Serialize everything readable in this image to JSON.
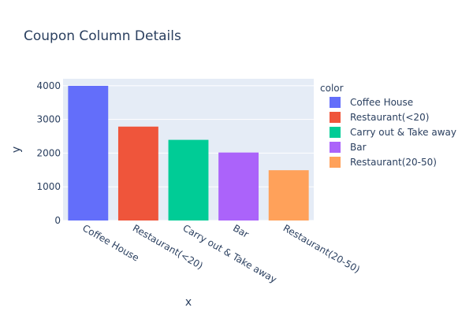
{
  "chart_data": {
    "type": "bar",
    "title": "Coupon Column Details",
    "xlabel": "x",
    "ylabel": "y",
    "categories": [
      "Coffee House",
      "Restaurant(<20)",
      "Carry out & Take away",
      "Bar",
      "Restaurant(20-50)"
    ],
    "values": [
      3996,
      2786,
      2393,
      2017,
      1492
    ],
    "colors": [
      "#636efa",
      "#ef553b",
      "#00cc96",
      "#ab63fa",
      "#ffa15a"
    ],
    "ylim": [
      0,
      4206
    ],
    "yticks": [
      0,
      1000,
      2000,
      3000,
      4000
    ],
    "grid": true,
    "legend_title": "color",
    "legend_position": "right"
  }
}
